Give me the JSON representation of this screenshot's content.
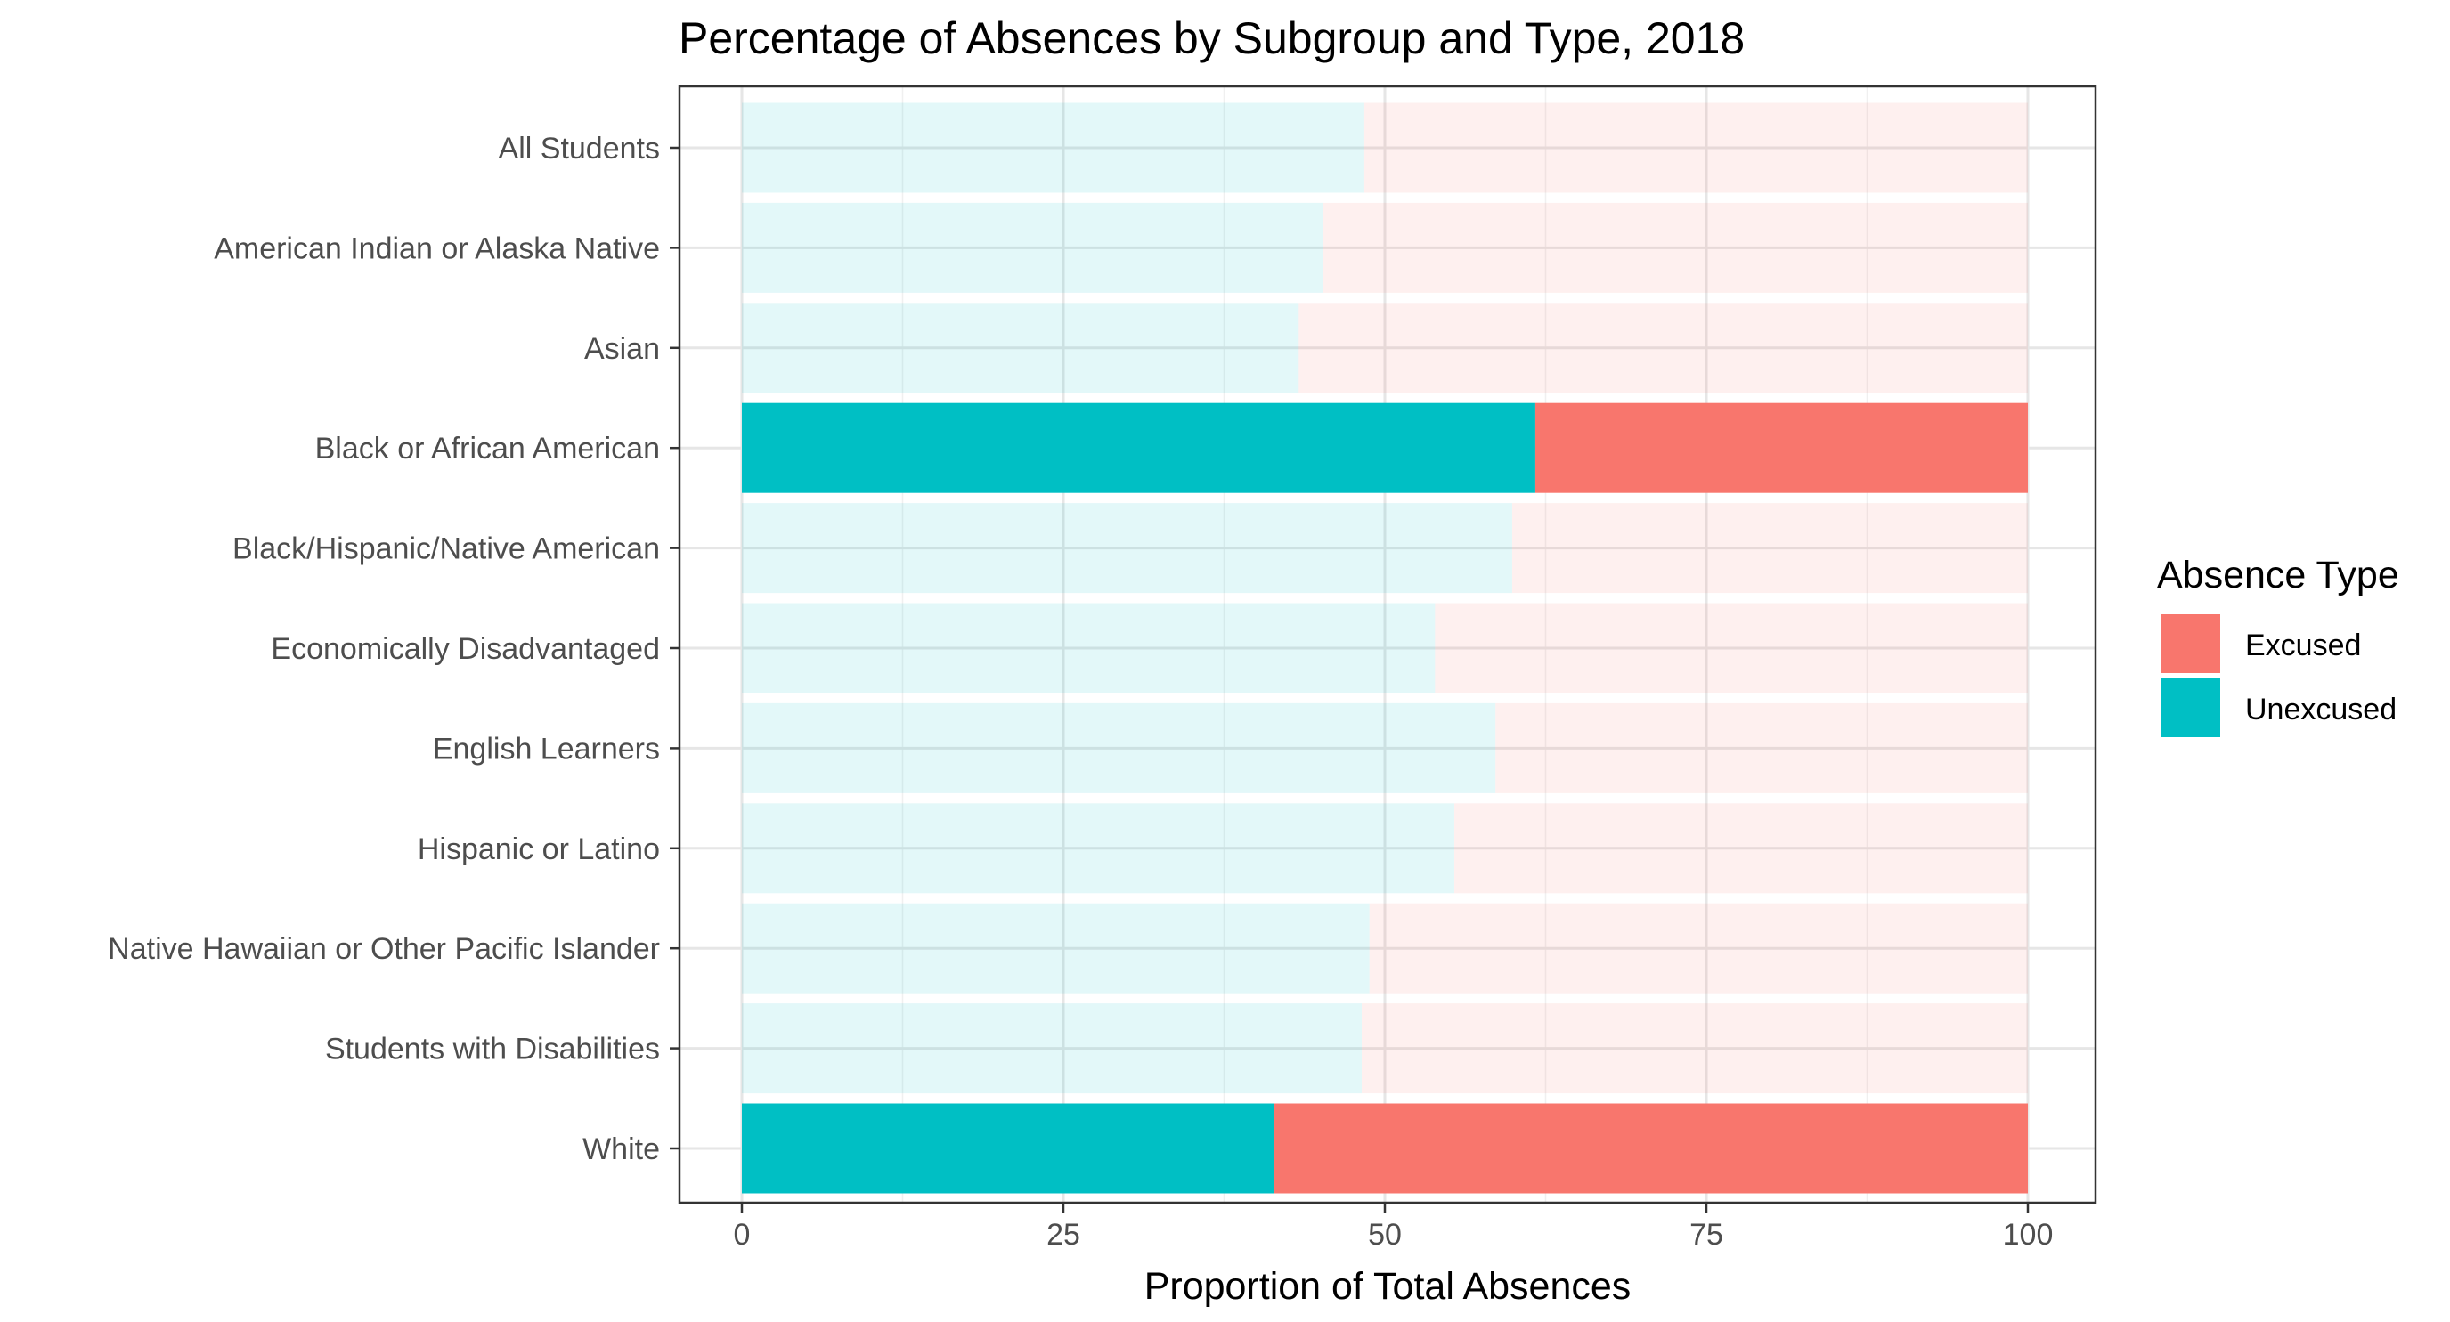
{
  "chart_data": {
    "type": "bar",
    "orientation": "horizontal",
    "stacked": true,
    "title": "Percentage of Absences by Subgroup and Type, 2018",
    "xlabel": "Proportion of Total Absences",
    "ylabel": "",
    "xlim": [
      0,
      100
    ],
    "x_ticks": [
      0,
      25,
      50,
      75,
      100
    ],
    "x_tick_labels": [
      "0",
      "25",
      "50",
      "75",
      "100"
    ],
    "grid": true,
    "legend": {
      "title": "Absence Type",
      "position": "right",
      "entries": [
        "Excused",
        "Unexcused"
      ]
    },
    "colors": {
      "Excused": "#F8766D",
      "Unexcused": "#00BFC4"
    },
    "categories": [
      "All Students",
      "American Indian or Alaska Native",
      "Asian",
      "Black or African American",
      "Black/Hispanic/Native American",
      "Economically Disadvantaged",
      "English Learners",
      "Hispanic or Latino",
      "Native Hawaiian or Other Pacific Islander",
      "Students with Disabilities",
      "White"
    ],
    "highlighted": [
      "Black or African American",
      "White"
    ],
    "series": [
      {
        "name": "Unexcused",
        "values": [
          48.4,
          45.2,
          43.3,
          61.7,
          59.9,
          53.9,
          58.6,
          55.4,
          48.8,
          48.2,
          41.4
        ]
      },
      {
        "name": "Excused",
        "values": [
          51.6,
          54.8,
          56.7,
          38.3,
          40.1,
          46.1,
          41.4,
          44.6,
          51.2,
          51.8,
          58.6
        ]
      }
    ]
  }
}
